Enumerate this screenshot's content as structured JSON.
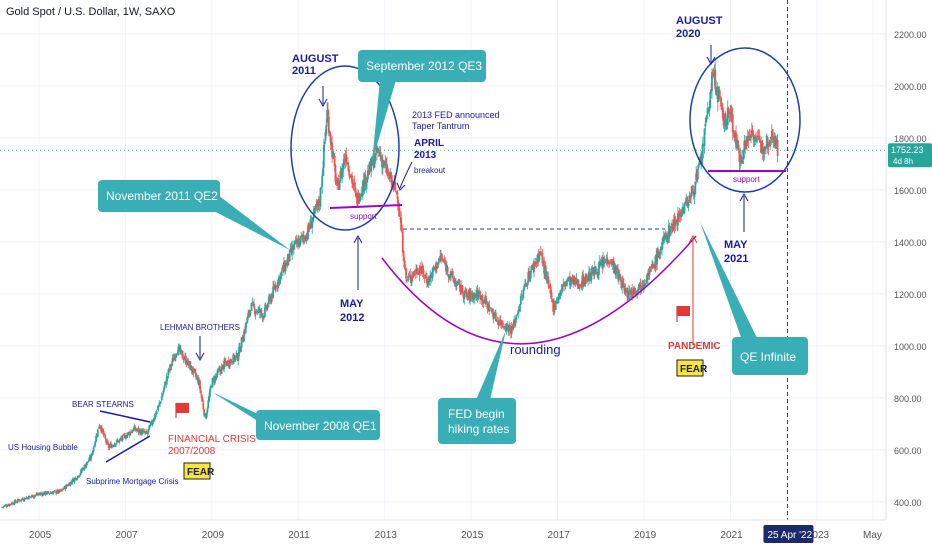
{
  "header": {
    "title": "Gold Spot / U.S. Dollar, 1W, SAXO"
  },
  "price_label": {
    "value": "1752.23",
    "countdown": "4d 8h"
  },
  "cursor_label": "25 Apr '22",
  "colors": {
    "candle_up": "#26a69a",
    "candle_down": "#ef5350",
    "annotation_blue": "#1a1aa6",
    "callout_teal": "#3aaeb6",
    "support_purple": "#a000c8",
    "fear_yellow": "#f5e642",
    "crisis_red": "#e53935"
  },
  "chart_data": {
    "type": "candlestick",
    "title": "Gold Spot / U.S. Dollar, 1W, SAXO",
    "y_ticks": [
      "400.00",
      "600.00",
      "800.00",
      "1000.00",
      "1200.00",
      "1400.00",
      "1600.00",
      "1800.00",
      "2000.00",
      "2200.00"
    ],
    "x_ticks": [
      "2005",
      "2007",
      "2009",
      "2011",
      "2013",
      "2015",
      "2017",
      "2019",
      "2021",
      "2023",
      "May"
    ],
    "ylim": [
      330,
      2330
    ],
    "xlim": [
      2004.1,
      2024.6
    ],
    "grid": true,
    "price_series": [
      [
        2004.15,
        380
      ],
      [
        2004.6,
        410
      ],
      [
        2005.0,
        430
      ],
      [
        2005.5,
        440
      ],
      [
        2005.9,
        500
      ],
      [
        2006.2,
        570
      ],
      [
        2006.4,
        700
      ],
      [
        2006.6,
        610
      ],
      [
        2006.9,
        640
      ],
      [
        2007.2,
        680
      ],
      [
        2007.5,
        660
      ],
      [
        2007.8,
        780
      ],
      [
        2008.0,
        900
      ],
      [
        2008.2,
        990
      ],
      [
        2008.5,
        920
      ],
      [
        2008.7,
        860
      ],
      [
        2008.85,
        720
      ],
      [
        2009.0,
        860
      ],
      [
        2009.3,
        930
      ],
      [
        2009.6,
        960
      ],
      [
        2009.9,
        1150
      ],
      [
        2010.2,
        1120
      ],
      [
        2010.5,
        1240
      ],
      [
        2010.9,
        1380
      ],
      [
        2011.2,
        1430
      ],
      [
        2011.5,
        1560
      ],
      [
        2011.67,
        1900
      ],
      [
        2011.9,
        1600
      ],
      [
        2012.1,
        1740
      ],
      [
        2012.35,
        1560
      ],
      [
        2012.6,
        1660
      ],
      [
        2012.85,
        1750
      ],
      [
        2013.1,
        1650
      ],
      [
        2013.3,
        1580
      ],
      [
        2013.5,
        1250
      ],
      [
        2013.8,
        1300
      ],
      [
        2014.0,
        1250
      ],
      [
        2014.3,
        1340
      ],
      [
        2014.6,
        1250
      ],
      [
        2014.9,
        1190
      ],
      [
        2015.2,
        1200
      ],
      [
        2015.6,
        1100
      ],
      [
        2015.95,
        1060
      ],
      [
        2016.3,
        1260
      ],
      [
        2016.6,
        1360
      ],
      [
        2016.9,
        1150
      ],
      [
        2017.2,
        1250
      ],
      [
        2017.5,
        1240
      ],
      [
        2017.9,
        1290
      ],
      [
        2018.2,
        1340
      ],
      [
        2018.6,
        1200
      ],
      [
        2018.9,
        1230
      ],
      [
        2019.2,
        1300
      ],
      [
        2019.5,
        1420
      ],
      [
        2019.8,
        1500
      ],
      [
        2020.1,
        1580
      ],
      [
        2020.3,
        1690
      ],
      [
        2020.6,
        2050
      ],
      [
        2020.85,
        1860
      ],
      [
        2021.0,
        1900
      ],
      [
        2021.2,
        1720
      ],
      [
        2021.5,
        1830
      ],
      [
        2021.7,
        1760
      ],
      [
        2021.9,
        1800
      ],
      [
        2022.0,
        1820
      ],
      [
        2022.1,
        1752
      ]
    ],
    "annotations": {
      "aug2011": "AUGUST\n2011",
      "sep2012qe3": "September 2012 QE3",
      "taper": "2013 FED announced\nTaper Tantrum",
      "apr2013": "APRIL\n2013",
      "breakout": "breakout",
      "nov2011qe2": "November 2011 QE2",
      "support1": "support",
      "may2012": "MAY\n2012",
      "lehman": "LEHMAN BROTHERS",
      "bear_stearns": "BEAR STEARNS",
      "us_housing": "US Housing Bubble",
      "subprime": "Subprime Mortgage Crisis",
      "financial_crisis": "FINANCIAL CRISIS\n2007/2008",
      "fear1": "FEAR",
      "nov2008qe1": "November 2008 QE1",
      "rounding": "rounding",
      "fed_hiking": "FED begin\nhiking rates",
      "pandemic": "PANDEMIC",
      "fear2": "FEAR",
      "qe_infinite": "QE Infinite",
      "aug2020": "AUGUST\n2020",
      "support2": "support",
      "may2021": "MAY\n2021"
    }
  }
}
